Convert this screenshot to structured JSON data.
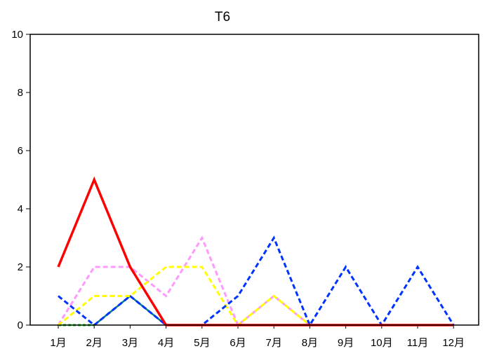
{
  "chart_data": {
    "type": "line",
    "title": "T6",
    "xlabel": "",
    "ylabel": "",
    "categories": [
      "1月",
      "2月",
      "3月",
      "4月",
      "5月",
      "6月",
      "7月",
      "8月",
      "9月",
      "10月",
      "11月",
      "12月"
    ],
    "ylim": [
      0,
      10
    ],
    "yticks": [
      0,
      2,
      4,
      6,
      8,
      10
    ],
    "grid": false,
    "legend": "none",
    "series": [
      {
        "color": "#00cc00",
        "dash": "dotted",
        "values": [
          0,
          0,
          null,
          null,
          null,
          null,
          null,
          null,
          null,
          null,
          null,
          null
        ]
      },
      {
        "color": "#008080",
        "dash": "solid",
        "values": [
          null,
          0,
          1,
          0,
          0,
          0,
          0,
          0,
          0,
          0,
          0,
          0
        ]
      },
      {
        "color": "#ff99ff",
        "dash": "dashed",
        "values": [
          0,
          2,
          2,
          1,
          3,
          0,
          1,
          0,
          0,
          0,
          0,
          0
        ]
      },
      {
        "color": "#ffff00",
        "dash": "dashed",
        "values": [
          0,
          1,
          1,
          2,
          2,
          0,
          1,
          0,
          0,
          0,
          0,
          0
        ]
      },
      {
        "color": "#0033ff",
        "dash": "dashed",
        "values": [
          1,
          0,
          1,
          0,
          0,
          1,
          3,
          0,
          2,
          0,
          2,
          0
        ]
      },
      {
        "color": "#ff0000",
        "dash": "solid",
        "values": [
          2,
          5,
          2,
          0,
          0,
          0,
          0,
          0,
          0,
          0,
          0,
          0
        ]
      }
    ]
  }
}
